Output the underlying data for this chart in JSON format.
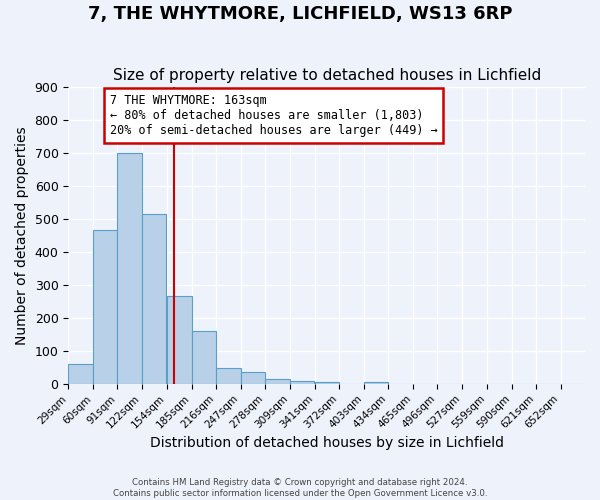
{
  "title": "7, THE WHYTMORE, LICHFIELD, WS13 6RP",
  "subtitle": "Size of property relative to detached houses in Lichfield",
  "xlabel": "Distribution of detached houses by size in Lichfield",
  "ylabel": "Number of detached properties",
  "bin_labels": [
    "29sqm",
    "60sqm",
    "91sqm",
    "122sqm",
    "154sqm",
    "185sqm",
    "216sqm",
    "247sqm",
    "278sqm",
    "309sqm",
    "341sqm",
    "372sqm",
    "403sqm",
    "434sqm",
    "465sqm",
    "496sqm",
    "527sqm",
    "559sqm",
    "590sqm",
    "621sqm",
    "652sqm"
  ],
  "bin_edges": [
    29,
    60,
    91,
    122,
    154,
    185,
    216,
    247,
    278,
    309,
    341,
    372,
    403,
    434,
    465,
    496,
    527,
    559,
    590,
    621,
    652,
    683
  ],
  "bar_heights": [
    60,
    467,
    700,
    515,
    265,
    160,
    47,
    35,
    15,
    10,
    5,
    0,
    5,
    0,
    0,
    0,
    0,
    0,
    0,
    0,
    0
  ],
  "bar_color": "#b8d0e8",
  "bar_edge_color": "#5a9fc8",
  "background_color": "#eef2fb",
  "grid_color": "#ffffff",
  "vline_x": 163,
  "vline_color": "#cc0000",
  "annotation_box_text": "7 THE WHYTMORE: 163sqm\n← 80% of detached houses are smaller (1,803)\n20% of semi-detached houses are larger (449) →",
  "annotation_box_color": "#cc0000",
  "ylim": [
    0,
    900
  ],
  "yticks": [
    0,
    100,
    200,
    300,
    400,
    500,
    600,
    700,
    800,
    900
  ],
  "footer_line1": "Contains HM Land Registry data © Crown copyright and database right 2024.",
  "footer_line2": "Contains public sector information licensed under the Open Government Licence v3.0.",
  "title_fontsize": 13,
  "subtitle_fontsize": 11,
  "xlabel_fontsize": 10,
  "ylabel_fontsize": 10
}
